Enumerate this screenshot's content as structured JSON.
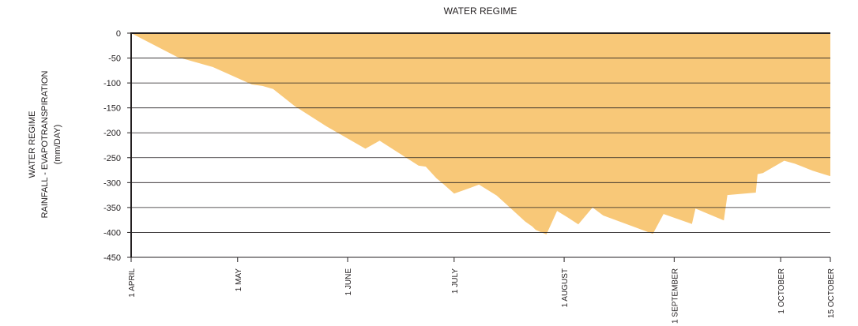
{
  "chart_data": {
    "type": "area",
    "title": "WATER REGIME",
    "ylabel_lines": [
      "WATER REGIME",
      "RAINFALL - EVAPOTRANSPIRATION",
      "(mm/DAY)"
    ],
    "ylim": [
      -450,
      0
    ],
    "yticks": [
      0,
      -50,
      -100,
      -150,
      -200,
      -250,
      -300,
      -350,
      -400,
      -450
    ],
    "xticks": [
      {
        "label": "1 APRIL",
        "day": 0
      },
      {
        "label": "1 MAY",
        "day": 30
      },
      {
        "label": "1 JUNE",
        "day": 61
      },
      {
        "label": "1 JULY",
        "day": 91
      },
      {
        "label": "1 AUGUST",
        "day": 122
      },
      {
        "label": "1 SEPTEMBER",
        "day": 153
      },
      {
        "label": "1 OCTOBER",
        "day": 183
      },
      {
        "label": "15 OCTOBER",
        "day": 197
      }
    ],
    "grid": true,
    "fill_color": "#f8c878",
    "series": [
      {
        "x": [
          0,
          13,
          23,
          34,
          37,
          40,
          46,
          55,
          66,
          70,
          81,
          83,
          86,
          88,
          91,
          95,
          98,
          103,
          111,
          113,
          114,
          117,
          120,
          123,
          126,
          130,
          133,
          147,
          150,
          158,
          159,
          167,
          168,
          176,
          176.5,
          178,
          184,
          187,
          192,
          196,
          197
        ],
        "y": [
          0,
          -48,
          -68,
          -103,
          -106,
          -112,
          -146,
          -187,
          -232,
          -216,
          -266,
          -268,
          -291,
          -303,
          -322,
          -312,
          -304,
          -326,
          -378,
          -388,
          -395,
          -404,
          -357,
          -370,
          -384,
          -350,
          -366,
          -403,
          -363,
          -383,
          -352,
          -376,
          -325,
          -320,
          -283,
          -281,
          -256,
          -262,
          -276,
          -285,
          -287
        ]
      }
    ]
  }
}
